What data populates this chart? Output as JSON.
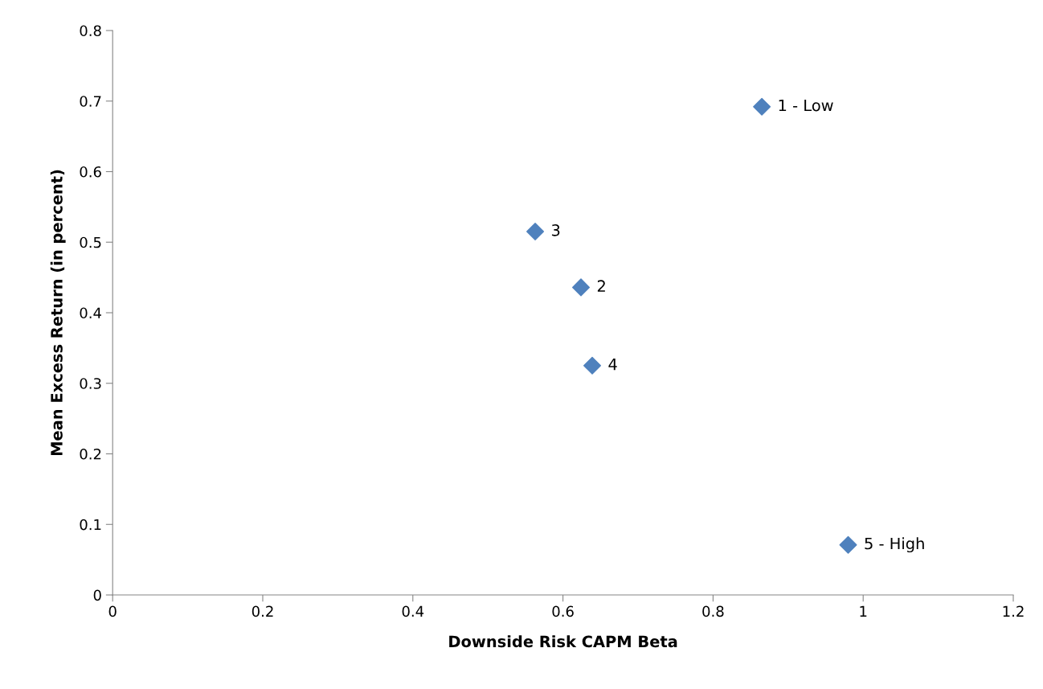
{
  "chart_data": {
    "type": "scatter",
    "xlabel": "Downside Risk CAPM Beta",
    "ylabel": "Mean Excess Return (in percent)",
    "x": [
      0.865,
      0.624,
      0.563,
      0.639,
      0.98
    ],
    "series": [
      {
        "color": "#4f81bd",
        "values": [
          0.692,
          0.436,
          0.515,
          0.325,
          0.071
        ]
      }
    ],
    "marker": "diamond",
    "grid": false,
    "legend": false,
    "xlim": [
      0,
      1.2
    ],
    "xticks": [
      0,
      0.2,
      0.4,
      0.6,
      0.8,
      1,
      1.2
    ],
    "ylim": [
      0,
      0.8
    ],
    "yticks": [
      0,
      0.1,
      0.2,
      0.3,
      0.4,
      0.5,
      0.6,
      0.7,
      0.8
    ],
    "annotations": [
      {
        "text": "1 - Low",
        "x": 0.865,
        "y": 0.692
      },
      {
        "text": "2",
        "x": 0.624,
        "y": 0.436
      },
      {
        "text": "3",
        "x": 0.563,
        "y": 0.515
      },
      {
        "text": "4",
        "x": 0.639,
        "y": 0.325
      },
      {
        "text": "5 - High",
        "x": 0.98,
        "y": 0.071
      }
    ]
  }
}
